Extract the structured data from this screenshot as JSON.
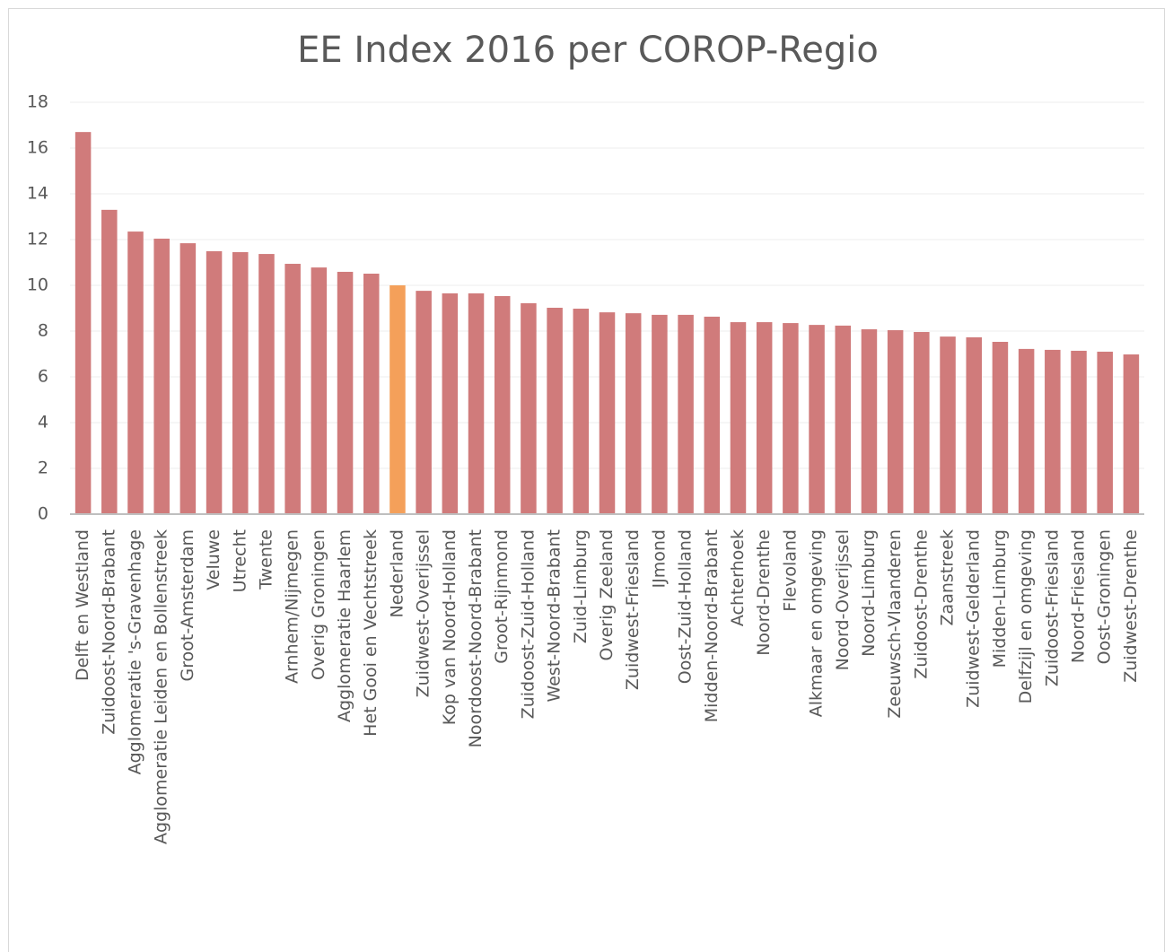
{
  "chart_data": {
    "type": "bar",
    "title": "EE Index 2016 per COROP-Regio",
    "categories": [
      "Delft en Westland",
      "Zuidoost-Noord-Brabant",
      "Agglomeratie 's-Gravenhage",
      "Agglomeratie Leiden en Bollenstreek",
      "Groot-Amsterdam",
      "Veluwe",
      "Utrecht",
      "Twente",
      "Arnhem/Nijmegen",
      "Overig Groningen",
      "Agglomeratie Haarlem",
      "Het Gooi en Vechtstreek",
      "Nederland",
      "Zuidwest-Overijssel",
      "Kop van Noord-Holland",
      "Noordoost-Noord-Brabant",
      "Groot-Rijnmond",
      "Zuidoost-Zuid-Holland",
      "West-Noord-Brabant",
      "Zuid-Limburg",
      "Overig Zeeland",
      "Zuidwest-Friesland",
      "IJmond",
      "Oost-Zuid-Holland",
      "Midden-Noord-Brabant",
      "Achterhoek",
      "Noord-Drenthe",
      "Flevoland",
      "Alkmaar en omgeving",
      "Noord-Overijssel",
      "Noord-Limburg",
      "Zeeuwsch-Vlaanderen",
      "Zuidoost-Drenthe",
      "Zaanstreek",
      "Zuidwest-Gelderland",
      "Midden-Limburg",
      "Delfzijl en omgeving",
      "Zuidoost-Friesland",
      "Noord-Friesland",
      "Oost-Groningen",
      "Zuidwest-Drenthe"
    ],
    "values": [
      16.7,
      13.3,
      12.35,
      12.04,
      11.84,
      11.49,
      11.45,
      11.37,
      10.94,
      10.78,
      10.59,
      10.51,
      10.0,
      9.76,
      9.65,
      9.65,
      9.53,
      9.22,
      9.02,
      8.98,
      8.82,
      8.78,
      8.71,
      8.71,
      8.63,
      8.39,
      8.39,
      8.35,
      8.27,
      8.24,
      8.08,
      8.04,
      7.96,
      7.76,
      7.73,
      7.53,
      7.22,
      7.18,
      7.14,
      7.1,
      6.98
    ],
    "colors": [
      "#d07b7b",
      "#d07b7b",
      "#d07b7b",
      "#d07b7b",
      "#d07b7b",
      "#d07b7b",
      "#d07b7b",
      "#d07b7b",
      "#d07b7b",
      "#d07b7b",
      "#d07b7b",
      "#d07b7b",
      "#f4a05a",
      "#d07b7b",
      "#d07b7b",
      "#d07b7b",
      "#d07b7b",
      "#d07b7b",
      "#d07b7b",
      "#d07b7b",
      "#d07b7b",
      "#d07b7b",
      "#d07b7b",
      "#d07b7b",
      "#d07b7b",
      "#d07b7b",
      "#d07b7b",
      "#d07b7b",
      "#d07b7b",
      "#d07b7b",
      "#d07b7b",
      "#d07b7b",
      "#d07b7b",
      "#d07b7b",
      "#d07b7b",
      "#d07b7b",
      "#d07b7b",
      "#d07b7b",
      "#d07b7b",
      "#d07b7b",
      "#d07b7b"
    ],
    "ylim": [
      0,
      18
    ],
    "yticks": [
      0,
      2,
      4,
      6,
      8,
      10,
      12,
      14,
      16,
      18
    ],
    "grid": true
  }
}
